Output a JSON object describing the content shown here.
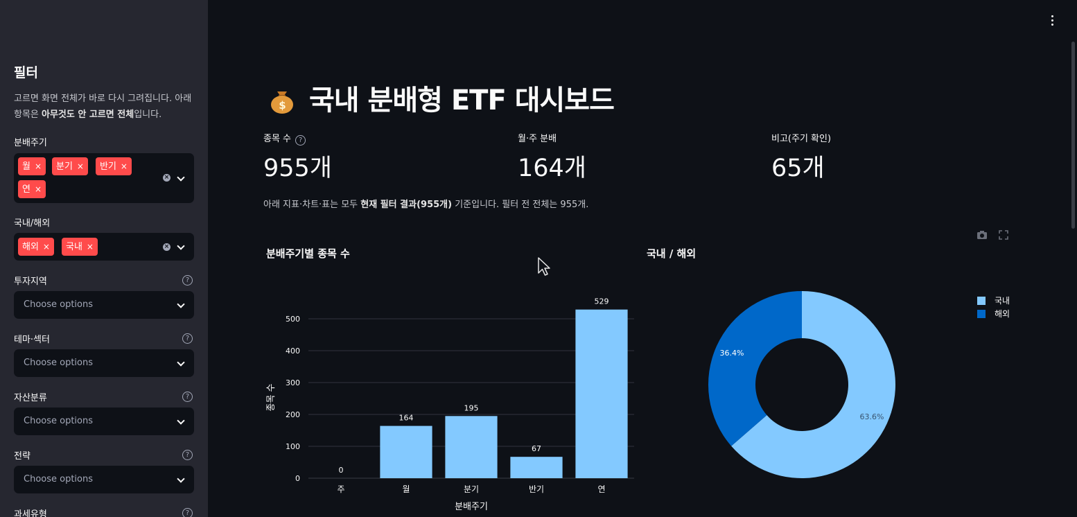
{
  "sidebar": {
    "title": "필터",
    "desc_pre": "고르면 화면 전체가 바로 다시 그려집니다. 아래 항목은 ",
    "desc_bold": "아무것도 안 고르면 전체",
    "desc_post": "입니다.",
    "filters": [
      {
        "label": "분배주기",
        "tags": [
          "월",
          "분기",
          "반기",
          "연"
        ]
      },
      {
        "label": "국내/해외",
        "tags": [
          "해외",
          "국내"
        ]
      },
      {
        "label": "투자지역",
        "placeholder": "Choose options"
      },
      {
        "label": "테마·섹터",
        "placeholder": "Choose options"
      },
      {
        "label": "자산분류",
        "placeholder": "Choose options"
      },
      {
        "label": "전략",
        "placeholder": "Choose options"
      },
      {
        "label": "과세유형"
      }
    ],
    "tag_remove_icon": "×",
    "help_icon": "?"
  },
  "header": {
    "title": "국내 분배형 ETF 대시보드",
    "title_icon": "money-bag-icon"
  },
  "metrics": [
    {
      "label": "종목 수",
      "value": "955개"
    },
    {
      "label": "월·주 분배",
      "value": "164개"
    },
    {
      "label": "비고(주기 확인)",
      "value": "65개"
    }
  ],
  "note": {
    "pre": "아래 지표·차트·표는 모두 ",
    "bold": "현재 필터 결과(955개)",
    "post": " 기준입니다. 필터 전 전체는 955개."
  },
  "colors": {
    "accent": "#ff4b4b",
    "bar": "#83c9ff",
    "domestic": "#83c9ff",
    "overseas": "#0068c9"
  },
  "chart_data": [
    {
      "type": "bar",
      "title": "분배주기별 종목 수",
      "xlabel": "분배주기",
      "ylabel": "종목 수",
      "categories": [
        "주",
        "월",
        "분기",
        "반기",
        "연"
      ],
      "values": [
        0,
        164,
        195,
        67,
        529
      ],
      "ylim": [
        0,
        550
      ],
      "yticks": [
        0,
        100,
        200,
        300,
        400,
        500
      ],
      "grid": true
    },
    {
      "type": "pie",
      "title": "국내 / 해외",
      "hole": true,
      "labels": [
        "국내",
        "해외"
      ],
      "values": [
        63.6,
        36.4
      ],
      "value_labels": [
        "63.6%",
        "36.4%"
      ],
      "legend": "top-right"
    }
  ]
}
